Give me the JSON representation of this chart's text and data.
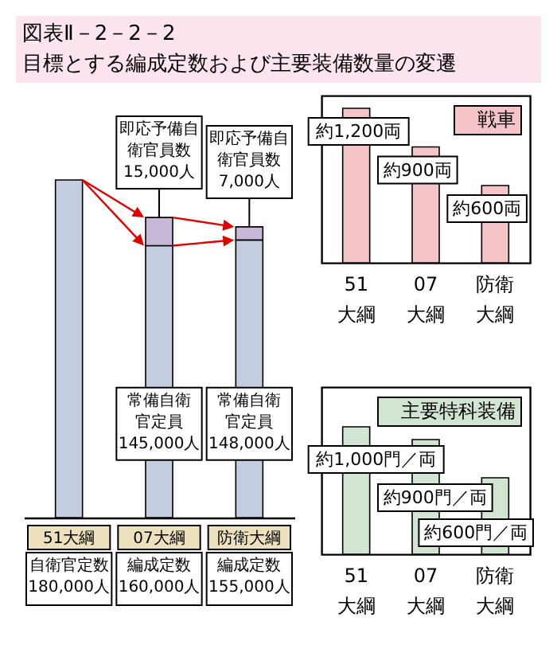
{
  "chart_data": [
    {
      "type": "bar",
      "title": "図表Ⅱ－2－2－2",
      "subtitle": "目標とする編成定数および主要装備数量の変遷",
      "categories": [
        "51大綱",
        "07大綱",
        "防衛大綱"
      ],
      "stacked": true,
      "series": [
        {
          "color": "#c4cce0",
          "values": [
            180000,
            145000,
            148000
          ],
          "value_labels": [
            null,
            "常備自衛官定員145,000人",
            "常備自衛官定員148,000人"
          ]
        },
        {
          "color": "#c8b8d8",
          "values": [
            null,
            15000,
            7000
          ],
          "value_labels": [
            null,
            "即応予備自衛官員数15,000人",
            "即応予備自衛官員数7,000人"
          ]
        }
      ],
      "totals": [
        "自衛官定数180,000人",
        "編成定数160,000人",
        "編成定数155,000人"
      ]
    },
    {
      "type": "bar",
      "categories": [
        "51大綱",
        "07大綱",
        "防衛大綱"
      ],
      "legend": "top right",
      "series": [
        {
          "name": "戦車",
          "color": "#f4c4c8",
          "values": [
            1200,
            900,
            600
          ],
          "value_labels": [
            "約1,200両",
            "約900両",
            "約600両"
          ]
        }
      ]
    },
    {
      "type": "bar",
      "categories": [
        "51大綱",
        "07大綱",
        "防衛大綱"
      ],
      "legend": "top right",
      "series": [
        {
          "name": "主要特科装備",
          "color": "#d2e4d2",
          "values": [
            1000,
            900,
            600
          ],
          "value_labels": [
            "約1,000門／両",
            "約900門／両",
            "約600門／両"
          ]
        }
      ]
    }
  ]
}
